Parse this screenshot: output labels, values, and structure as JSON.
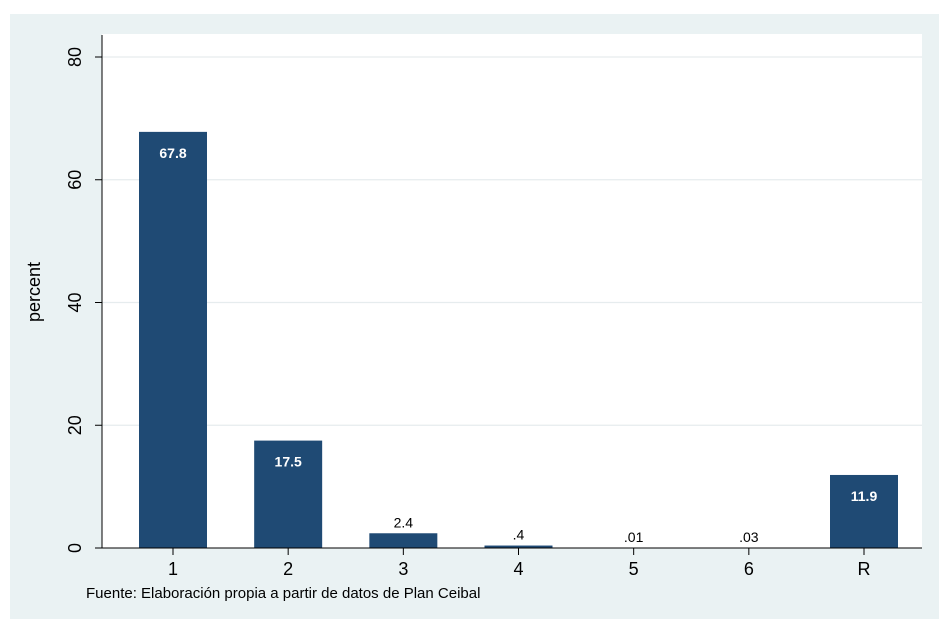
{
  "chart_data": {
    "type": "bar",
    "categories": [
      "1",
      "2",
      "3",
      "4",
      "5",
      "6",
      "R"
    ],
    "values": [
      67.8,
      17.5,
      2.4,
      0.4,
      0.01,
      0.03,
      11.9
    ],
    "value_labels": [
      "67.8",
      "17.5",
      "2.4",
      ".4",
      ".01",
      ".03",
      "11.9"
    ],
    "title": "",
    "xlabel": "",
    "ylabel": "percent",
    "ylim": [
      0,
      80
    ],
    "yticks": [
      0,
      20,
      40,
      60,
      80
    ],
    "grid": true,
    "legend": "none",
    "colors": {
      "bar": "#1f4a74",
      "background": "#eaf2f3",
      "plot_background": "#ffffff",
      "grid": "#e6ecee"
    }
  },
  "source_note": "Fuente: Elaboración propia a partir de datos de Plan Ceibal"
}
